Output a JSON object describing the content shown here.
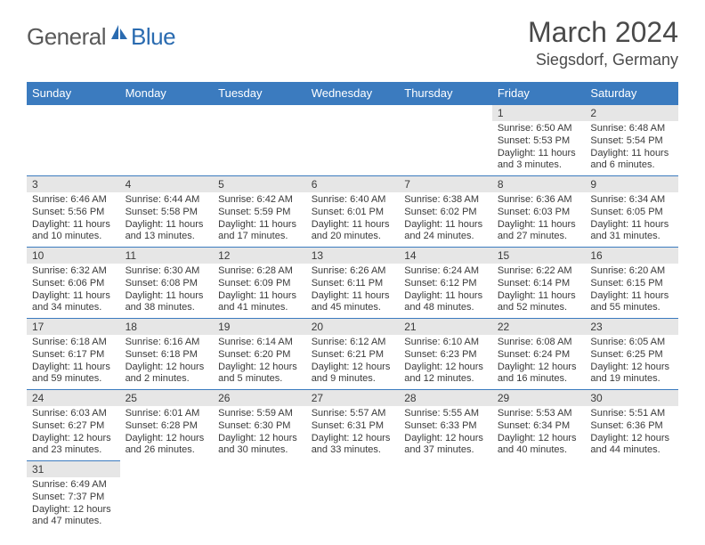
{
  "logo": {
    "text1": "General",
    "text2": "Blue"
  },
  "title": "March 2024",
  "location": "Siegsdorf, Germany",
  "colors": {
    "header_bg": "#3b7bbf",
    "header_text": "#ffffff",
    "daynum_bg": "#e6e6e6",
    "border": "#3b7bbf",
    "title_color": "#4a4a4a",
    "logo_gray": "#5a5a5a",
    "logo_blue": "#2a6bb0"
  },
  "weekdays": [
    "Sunday",
    "Monday",
    "Tuesday",
    "Wednesday",
    "Thursday",
    "Friday",
    "Saturday"
  ],
  "weeks": [
    [
      null,
      null,
      null,
      null,
      null,
      {
        "n": "1",
        "sr": "Sunrise: 6:50 AM",
        "ss": "Sunset: 5:53 PM",
        "d1": "Daylight: 11 hours",
        "d2": "and 3 minutes."
      },
      {
        "n": "2",
        "sr": "Sunrise: 6:48 AM",
        "ss": "Sunset: 5:54 PM",
        "d1": "Daylight: 11 hours",
        "d2": "and 6 minutes."
      }
    ],
    [
      {
        "n": "3",
        "sr": "Sunrise: 6:46 AM",
        "ss": "Sunset: 5:56 PM",
        "d1": "Daylight: 11 hours",
        "d2": "and 10 minutes."
      },
      {
        "n": "4",
        "sr": "Sunrise: 6:44 AM",
        "ss": "Sunset: 5:58 PM",
        "d1": "Daylight: 11 hours",
        "d2": "and 13 minutes."
      },
      {
        "n": "5",
        "sr": "Sunrise: 6:42 AM",
        "ss": "Sunset: 5:59 PM",
        "d1": "Daylight: 11 hours",
        "d2": "and 17 minutes."
      },
      {
        "n": "6",
        "sr": "Sunrise: 6:40 AM",
        "ss": "Sunset: 6:01 PM",
        "d1": "Daylight: 11 hours",
        "d2": "and 20 minutes."
      },
      {
        "n": "7",
        "sr": "Sunrise: 6:38 AM",
        "ss": "Sunset: 6:02 PM",
        "d1": "Daylight: 11 hours",
        "d2": "and 24 minutes."
      },
      {
        "n": "8",
        "sr": "Sunrise: 6:36 AM",
        "ss": "Sunset: 6:03 PM",
        "d1": "Daylight: 11 hours",
        "d2": "and 27 minutes."
      },
      {
        "n": "9",
        "sr": "Sunrise: 6:34 AM",
        "ss": "Sunset: 6:05 PM",
        "d1": "Daylight: 11 hours",
        "d2": "and 31 minutes."
      }
    ],
    [
      {
        "n": "10",
        "sr": "Sunrise: 6:32 AM",
        "ss": "Sunset: 6:06 PM",
        "d1": "Daylight: 11 hours",
        "d2": "and 34 minutes."
      },
      {
        "n": "11",
        "sr": "Sunrise: 6:30 AM",
        "ss": "Sunset: 6:08 PM",
        "d1": "Daylight: 11 hours",
        "d2": "and 38 minutes."
      },
      {
        "n": "12",
        "sr": "Sunrise: 6:28 AM",
        "ss": "Sunset: 6:09 PM",
        "d1": "Daylight: 11 hours",
        "d2": "and 41 minutes."
      },
      {
        "n": "13",
        "sr": "Sunrise: 6:26 AM",
        "ss": "Sunset: 6:11 PM",
        "d1": "Daylight: 11 hours",
        "d2": "and 45 minutes."
      },
      {
        "n": "14",
        "sr": "Sunrise: 6:24 AM",
        "ss": "Sunset: 6:12 PM",
        "d1": "Daylight: 11 hours",
        "d2": "and 48 minutes."
      },
      {
        "n": "15",
        "sr": "Sunrise: 6:22 AM",
        "ss": "Sunset: 6:14 PM",
        "d1": "Daylight: 11 hours",
        "d2": "and 52 minutes."
      },
      {
        "n": "16",
        "sr": "Sunrise: 6:20 AM",
        "ss": "Sunset: 6:15 PM",
        "d1": "Daylight: 11 hours",
        "d2": "and 55 minutes."
      }
    ],
    [
      {
        "n": "17",
        "sr": "Sunrise: 6:18 AM",
        "ss": "Sunset: 6:17 PM",
        "d1": "Daylight: 11 hours",
        "d2": "and 59 minutes."
      },
      {
        "n": "18",
        "sr": "Sunrise: 6:16 AM",
        "ss": "Sunset: 6:18 PM",
        "d1": "Daylight: 12 hours",
        "d2": "and 2 minutes."
      },
      {
        "n": "19",
        "sr": "Sunrise: 6:14 AM",
        "ss": "Sunset: 6:20 PM",
        "d1": "Daylight: 12 hours",
        "d2": "and 5 minutes."
      },
      {
        "n": "20",
        "sr": "Sunrise: 6:12 AM",
        "ss": "Sunset: 6:21 PM",
        "d1": "Daylight: 12 hours",
        "d2": "and 9 minutes."
      },
      {
        "n": "21",
        "sr": "Sunrise: 6:10 AM",
        "ss": "Sunset: 6:23 PM",
        "d1": "Daylight: 12 hours",
        "d2": "and 12 minutes."
      },
      {
        "n": "22",
        "sr": "Sunrise: 6:08 AM",
        "ss": "Sunset: 6:24 PM",
        "d1": "Daylight: 12 hours",
        "d2": "and 16 minutes."
      },
      {
        "n": "23",
        "sr": "Sunrise: 6:05 AM",
        "ss": "Sunset: 6:25 PM",
        "d1": "Daylight: 12 hours",
        "d2": "and 19 minutes."
      }
    ],
    [
      {
        "n": "24",
        "sr": "Sunrise: 6:03 AM",
        "ss": "Sunset: 6:27 PM",
        "d1": "Daylight: 12 hours",
        "d2": "and 23 minutes."
      },
      {
        "n": "25",
        "sr": "Sunrise: 6:01 AM",
        "ss": "Sunset: 6:28 PM",
        "d1": "Daylight: 12 hours",
        "d2": "and 26 minutes."
      },
      {
        "n": "26",
        "sr": "Sunrise: 5:59 AM",
        "ss": "Sunset: 6:30 PM",
        "d1": "Daylight: 12 hours",
        "d2": "and 30 minutes."
      },
      {
        "n": "27",
        "sr": "Sunrise: 5:57 AM",
        "ss": "Sunset: 6:31 PM",
        "d1": "Daylight: 12 hours",
        "d2": "and 33 minutes."
      },
      {
        "n": "28",
        "sr": "Sunrise: 5:55 AM",
        "ss": "Sunset: 6:33 PM",
        "d1": "Daylight: 12 hours",
        "d2": "and 37 minutes."
      },
      {
        "n": "29",
        "sr": "Sunrise: 5:53 AM",
        "ss": "Sunset: 6:34 PM",
        "d1": "Daylight: 12 hours",
        "d2": "and 40 minutes."
      },
      {
        "n": "30",
        "sr": "Sunrise: 5:51 AM",
        "ss": "Sunset: 6:36 PM",
        "d1": "Daylight: 12 hours",
        "d2": "and 44 minutes."
      }
    ],
    [
      {
        "n": "31",
        "sr": "Sunrise: 6:49 AM",
        "ss": "Sunset: 7:37 PM",
        "d1": "Daylight: 12 hours",
        "d2": "and 47 minutes."
      },
      null,
      null,
      null,
      null,
      null,
      null
    ]
  ]
}
